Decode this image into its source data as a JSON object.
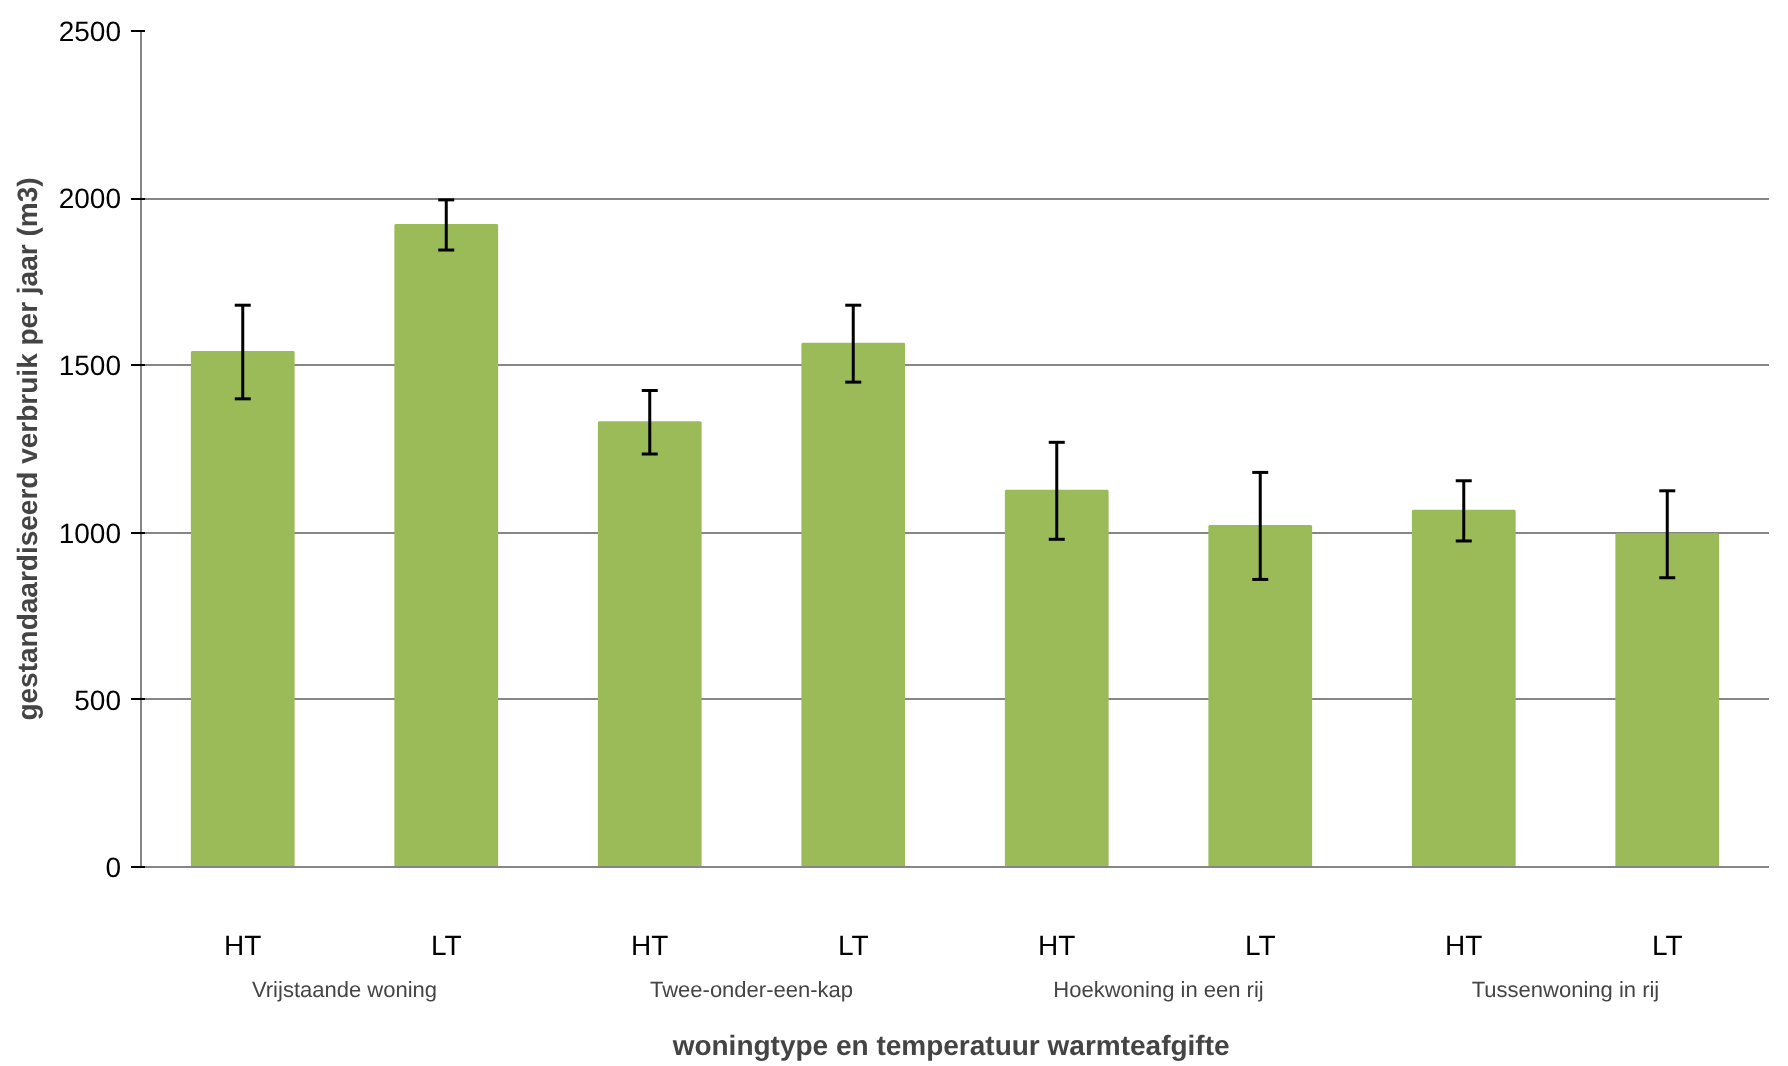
{
  "chart_data": {
    "type": "bar",
    "xlabel": "woningtype en temperatuur  warmteafgifte",
    "ylabel": "gestandaardiseerd verbruik per jaar (m3)",
    "categories": [
      "HT",
      "LT",
      "HT",
      "LT",
      "HT",
      "LT",
      "HT",
      "LT"
    ],
    "values": [
      1540,
      1920,
      1330,
      1565,
      1125,
      1020,
      1065,
      995
    ],
    "errors": [
      140,
      75,
      95,
      115,
      145,
      160,
      90,
      130
    ],
    "color": "#9bbb59",
    "ylim": [
      0,
      2500
    ],
    "yticks": [
      0,
      500,
      1000,
      1500,
      2000,
      2500
    ],
    "grid": "y",
    "annotations": [
      "Vrijstaande woning",
      "Twee-onder-een-kap",
      "Hoekwoning in een rij",
      "Tussenwoning in rij"
    ]
  }
}
